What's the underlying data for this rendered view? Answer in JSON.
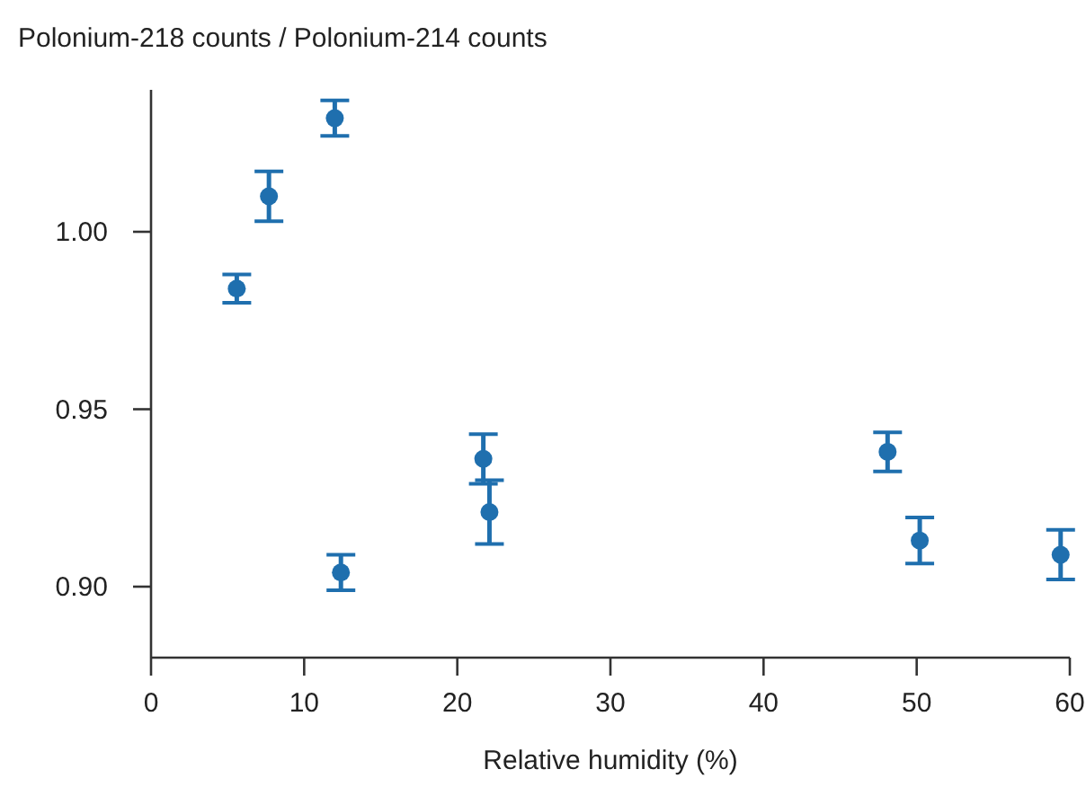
{
  "chart_data": {
    "type": "scatter",
    "ylabel": "Polonium-218 counts / Polonium-214 counts",
    "xlabel": "Relative humidity (%)",
    "x": [
      5.6,
      7.7,
      12.0,
      12.4,
      21.7,
      22.1,
      48.1,
      50.2,
      59.4
    ],
    "values": [
      0.984,
      1.01,
      1.032,
      0.904,
      0.936,
      0.921,
      0.938,
      0.913,
      0.909
    ],
    "errors": [
      0.004,
      0.007,
      0.005,
      0.005,
      0.007,
      0.009,
      0.0055,
      0.0065,
      0.007
    ],
    "color": "#1f6fae",
    "marker": "circle",
    "xlim": [
      0,
      60
    ],
    "xticks": [
      0,
      10,
      20,
      30,
      40,
      50,
      60
    ],
    "ylim": [
      0.88,
      1.04
    ],
    "yticks": [
      {
        "value": 0.9,
        "label": "0.90"
      },
      {
        "value": 0.95,
        "label": "0.95"
      },
      {
        "value": 1.0,
        "label": "1.00"
      }
    ],
    "grid": false
  }
}
